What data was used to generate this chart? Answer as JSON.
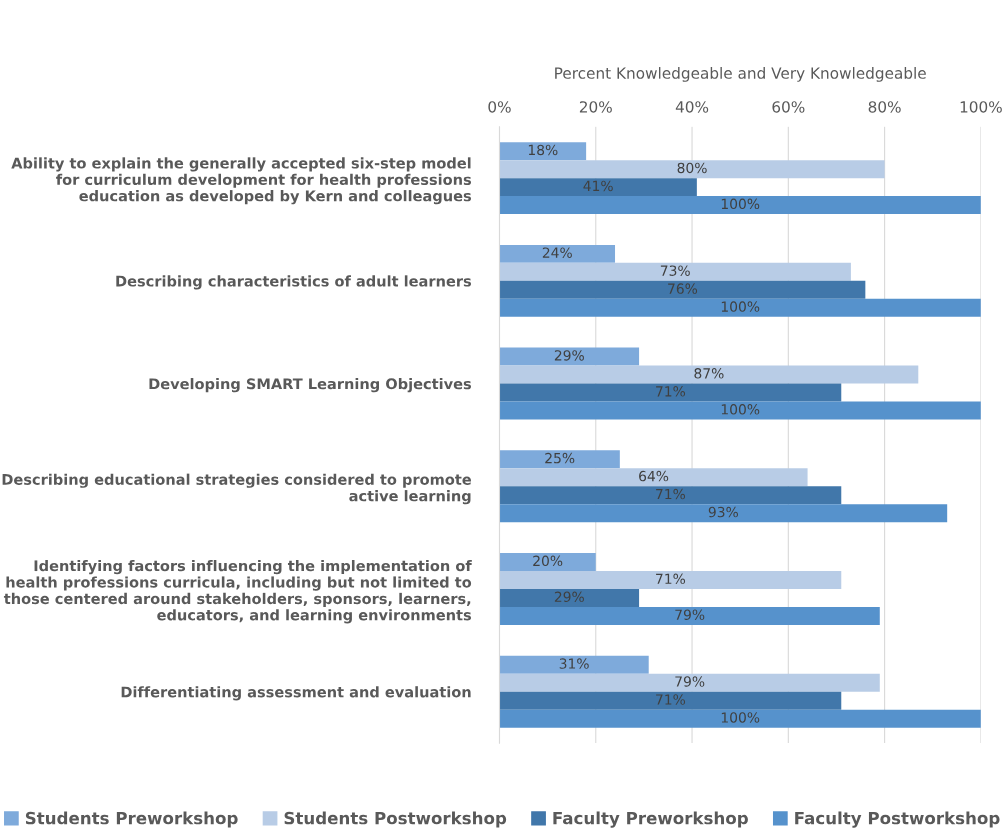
{
  "chart_data": {
    "type": "bar",
    "orientation": "horizontal",
    "xlabel": "Percent Knowledgeable and Very Knowledgeable",
    "categories": [
      "Ability to explain the generally accepted six-step model\nfor curriculum development for health professions\neducation as developed by Kern and colleagues",
      "Describing characteristics of adult learners",
      "Developing SMART Learning Objectives",
      "Describing educational strategies considered to promote\nactive learning",
      "Identifying factors influencing the implementation of\nhealth professions curricula, including but not limited to\nthose centered around stakeholders, sponsors, learners,\neducators, and learning environments",
      "Differentiating assessment and evaluation"
    ],
    "series": [
      {
        "name": "Students Preworkshop",
        "color": "#7eaadb",
        "values": [
          18,
          24,
          29,
          25,
          20,
          31
        ],
        "value_labels": [
          "18%",
          "24%",
          "29%",
          "25%",
          "20%",
          "31%"
        ]
      },
      {
        "name": "Students Postworkshop",
        "color": "#b8cce6",
        "values": [
          80,
          73,
          87,
          64,
          71,
          79
        ],
        "value_labels": [
          "80%",
          "73%",
          "87%",
          "64%",
          "71%",
          "79%"
        ]
      },
      {
        "name": "Faculty Preworkshop",
        "color": "#4177aa",
        "values": [
          41,
          76,
          71,
          71,
          29,
          71
        ],
        "value_labels": [
          "41%",
          "76%",
          "71%",
          "71%",
          "29%",
          "71%"
        ]
      },
      {
        "name": "Faculty Postworkshop",
        "color": "#5692cc",
        "values": [
          100,
          100,
          100,
          93,
          79,
          100
        ],
        "value_labels": [
          "100%",
          "100%",
          "100%",
          "93%",
          "79%",
          "100%"
        ]
      }
    ],
    "xlim": [
      0,
      100
    ],
    "xticks": [
      {
        "value": 0,
        "label": "0%"
      },
      {
        "value": 20,
        "label": "20%"
      },
      {
        "value": 40,
        "label": "40%"
      },
      {
        "value": 60,
        "label": "60%"
      },
      {
        "value": 80,
        "label": "80%"
      },
      {
        "value": 100,
        "label": "100%"
      }
    ],
    "grid": "x",
    "legend": "bottom"
  }
}
